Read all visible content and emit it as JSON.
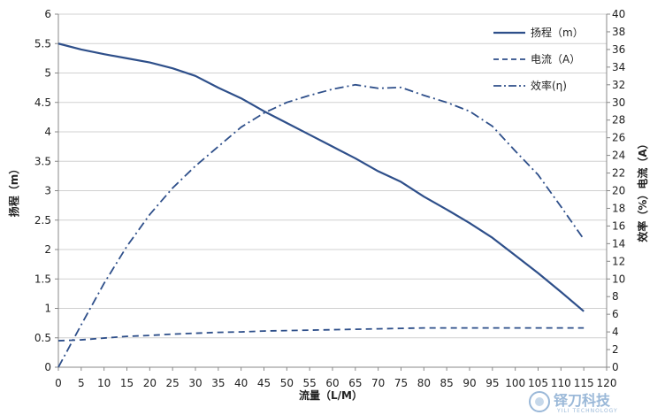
{
  "chart_data": {
    "type": "line",
    "xlabel": "流量（L/M）",
    "ylabel_left": "扬程（m）",
    "ylabel_right": "效率（%）电流（A）",
    "xlim": [
      0,
      120
    ],
    "ylim_left": [
      0,
      6
    ],
    "ylim_right": [
      0,
      40
    ],
    "x_ticks": [
      0,
      5,
      10,
      15,
      20,
      25,
      30,
      35,
      40,
      45,
      50,
      55,
      60,
      65,
      70,
      75,
      80,
      85,
      90,
      95,
      100,
      105,
      110,
      115,
      120
    ],
    "y_left_ticks": [
      0,
      0.5,
      1,
      1.5,
      2,
      2.5,
      3,
      3.5,
      4,
      4.5,
      5,
      5.5,
      6
    ],
    "y_right_ticks": [
      0,
      2,
      4,
      6,
      8,
      10,
      12,
      14,
      16,
      18,
      20,
      22,
      24,
      26,
      28,
      30,
      32,
      34,
      36,
      38,
      40
    ],
    "grid": "horizontal",
    "legend_position": "top-right",
    "series": [
      {
        "name": "扬程（m）",
        "axis": "left",
        "style": "solid",
        "color": "#2e4f8a",
        "x": [
          0,
          5,
          10,
          15,
          20,
          25,
          30,
          35,
          40,
          45,
          50,
          55,
          60,
          65,
          70,
          75,
          80,
          85,
          90,
          95,
          100,
          105,
          110,
          115
        ],
        "y": [
          5.5,
          5.4,
          5.32,
          5.25,
          5.18,
          5.08,
          4.95,
          4.75,
          4.57,
          4.35,
          4.15,
          3.95,
          3.75,
          3.55,
          3.33,
          3.15,
          2.9,
          2.68,
          2.45,
          2.2,
          1.9,
          1.6,
          1.28,
          0.95
        ]
      },
      {
        "name": "电流（A）",
        "axis": "right",
        "style": "dashed",
        "color": "#2e4f8a",
        "x": [
          0,
          5,
          10,
          15,
          20,
          25,
          30,
          35,
          40,
          45,
          50,
          55,
          60,
          65,
          70,
          75,
          80,
          85,
          90,
          95,
          100,
          105,
          110,
          115
        ],
        "y": [
          3.0,
          3.1,
          3.3,
          3.5,
          3.6,
          3.75,
          3.85,
          3.95,
          4.0,
          4.1,
          4.15,
          4.2,
          4.25,
          4.3,
          4.35,
          4.4,
          4.45,
          4.45,
          4.45,
          4.45,
          4.45,
          4.45,
          4.45,
          4.45
        ]
      },
      {
        "name": "效率(η)",
        "axis": "right",
        "style": "dash-dot",
        "color": "#2e4f8a",
        "x": [
          0,
          5,
          10,
          15,
          20,
          25,
          30,
          35,
          40,
          45,
          50,
          55,
          60,
          65,
          70,
          75,
          80,
          85,
          90,
          95,
          100,
          105,
          110,
          115
        ],
        "y": [
          0,
          4.8,
          9.5,
          13.7,
          17.3,
          20.3,
          22.8,
          25.0,
          27.2,
          28.8,
          30.0,
          30.8,
          31.5,
          32.0,
          31.6,
          31.7,
          30.8,
          30.0,
          29.0,
          27.3,
          24.5,
          21.8,
          18.2,
          14.5
        ]
      }
    ]
  },
  "watermark": {
    "brand": "铎刀科技",
    "sub": "YILI TECHNOLOGY"
  }
}
